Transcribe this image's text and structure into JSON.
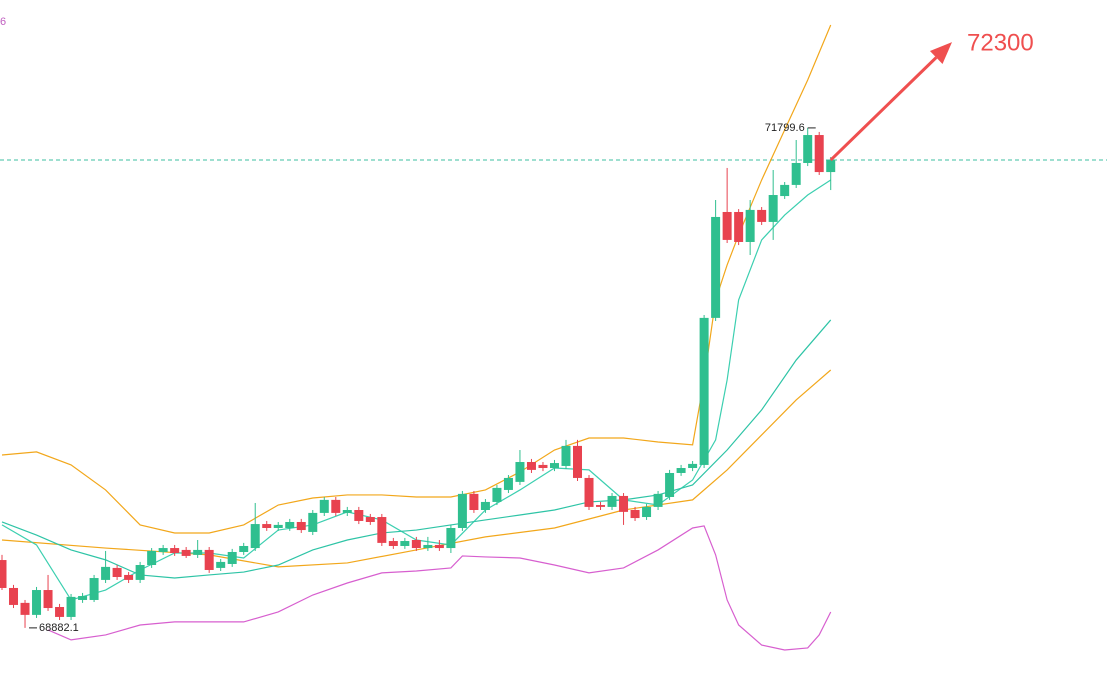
{
  "chart_data": {
    "type": "candlestick",
    "up_color": "#2fbf8f",
    "down_color": "#e8424f",
    "ylim": [
      68578,
      72546
    ],
    "corner_label": "6",
    "target": 72300,
    "open": [
      69278,
      69115,
      69028,
      68958,
      69103,
      69004,
      68946,
      69045,
      69045,
      69162,
      69232,
      69191,
      69162,
      69249,
      69325,
      69348,
      69337,
      69308,
      69337,
      69232,
      69255,
      69325,
      69348,
      69488,
      69465,
      69465,
      69500,
      69442,
      69553,
      69629,
      69553,
      69570,
      69529,
      69529,
      69389,
      69360,
      69395,
      69348,
      69366,
      69348,
      69465,
      69664,
      69570,
      69617,
      69687,
      69734,
      69850,
      69833,
      69815,
      69827,
      69944,
      69757,
      69599,
      69588,
      69652,
      69570,
      69529,
      69588,
      69646,
      69786,
      69815,
      69833,
      70691,
      71309,
      71309,
      71134,
      71321,
      71251,
      71402,
      71467,
      71595,
      71758,
      71542
    ],
    "high": [
      69308,
      69133,
      69045,
      69121,
      69191,
      69022,
      69080,
      69086,
      69191,
      69331,
      69249,
      69208,
      69267,
      69348,
      69366,
      69366,
      69354,
      69395,
      69354,
      69284,
      69343,
      69378,
      69611,
      69506,
      69500,
      69518,
      69518,
      69570,
      69646,
      69646,
      69588,
      69588,
      69547,
      69547,
      69407,
      69407,
      69413,
      69413,
      69395,
      69483,
      69681,
      69681,
      69634,
      69716,
      69774,
      69920,
      69868,
      69850,
      69862,
      69979,
      69979,
      69774,
      69617,
      69669,
      69669,
      69588,
      69605,
      69681,
      69804,
      69833,
      69856,
      70708,
      71379,
      71566,
      71326,
      71379,
      71338,
      71554,
      71484,
      71729,
      71799.6,
      71776,
      71630
    ],
    "low": [
      69103,
      68998,
      68882.1,
      68940,
      68981,
      68928,
      68928,
      69028,
      69033,
      69144,
      69162,
      69144,
      69144,
      69232,
      69308,
      69302,
      69290,
      69290,
      69203,
      69214,
      69238,
      69308,
      69331,
      69448,
      69448,
      69448,
      69436,
      69424,
      69535,
      69535,
      69535,
      69488,
      69483,
      69360,
      69343,
      69343,
      69331,
      69331,
      69331,
      69319,
      69448,
      69553,
      69553,
      69599,
      69669,
      69716,
      69786,
      69797,
      69797,
      69809,
      69739,
      69570,
      69570,
      69570,
      69483,
      69506,
      69512,
      69570,
      69629,
      69769,
      69797,
      69815,
      70673,
      71128,
      71116,
      71058,
      71233,
      71146,
      71385,
      71449,
      71577,
      71525,
      71437
    ],
    "close": [
      69115,
      69016,
      68958,
      69103,
      68998,
      68946,
      69063,
      69068,
      69173,
      69238,
      69179,
      69162,
      69249,
      69331,
      69348,
      69319,
      69302,
      69337,
      69220,
      69267,
      69325,
      69360,
      69488,
      69465,
      69483,
      69500,
      69453,
      69553,
      69629,
      69553,
      69570,
      69506,
      69500,
      69378,
      69360,
      69389,
      69348,
      69366,
      69348,
      69465,
      69664,
      69570,
      69617,
      69699,
      69757,
      69850,
      69804,
      69815,
      69844,
      69944,
      69757,
      69588,
      69588,
      69652,
      69559,
      69523,
      69588,
      69664,
      69786,
      69815,
      69839,
      70691,
      71280,
      71146,
      71134,
      71321,
      71251,
      71408,
      71467,
      71595,
      71758,
      71542,
      71612
    ],
    "lines": [
      {
        "color": "#f2a71b",
        "x": [
          0,
          3,
          6,
          9,
          12,
          15,
          18,
          21,
          24,
          27,
          30,
          33,
          36,
          39,
          42,
          45,
          48,
          51,
          54,
          57,
          60,
          61,
          62,
          63,
          64,
          66,
          68,
          70,
          72
        ],
        "values": [
          69891,
          69909,
          69833,
          69687,
          69483,
          69436,
          69436,
          69483,
          69599,
          69640,
          69658,
          69658,
          69646,
          69646,
          69687,
          69792,
          69920,
          69990,
          69990,
          69967,
          69950,
          70329,
          70796,
          71000,
          71175,
          71496,
          71788,
          72079,
          72400
        ]
      },
      {
        "color": "#f2a71b",
        "x": [
          0,
          9,
          18,
          24,
          30,
          36,
          42,
          48,
          54,
          60,
          63,
          66,
          69,
          72
        ],
        "values": [
          69395,
          69348,
          69308,
          69238,
          69261,
          69337,
          69413,
          69465,
          69570,
          69629,
          69804,
          70008,
          70212,
          70387
        ]
      },
      {
        "color": "#3ccfb0",
        "x": [
          0,
          3,
          6,
          9,
          12,
          15,
          18,
          21,
          24,
          27,
          30,
          33,
          36,
          39,
          42,
          45,
          48,
          51,
          54,
          57,
          60,
          62,
          63,
          64,
          66,
          68,
          70,
          72
        ],
        "values": [
          69483,
          69366,
          69045,
          69103,
          69220,
          69319,
          69319,
          69290,
          69453,
          69483,
          69559,
          69512,
          69395,
          69366,
          69570,
          69687,
          69815,
          69804,
          69629,
          69599,
          69745,
          69979,
          70329,
          70796,
          71146,
          71291,
          71408,
          71496
        ]
      },
      {
        "color": "#2ec4a6",
        "x": [
          0,
          3,
          6,
          9,
          12,
          15,
          18,
          21,
          24,
          27,
          30,
          33,
          36,
          39,
          42,
          45,
          48,
          51,
          54,
          57,
          60,
          63,
          66,
          69,
          72
        ],
        "values": [
          69500,
          69424,
          69337,
          69279,
          69191,
          69173,
          69191,
          69208,
          69249,
          69337,
          69395,
          69436,
          69453,
          69483,
          69512,
          69541,
          69570,
          69617,
          69629,
          69658,
          69716,
          69920,
          70154,
          70445,
          70679
        ]
      },
      {
        "color": "#d75fcf",
        "x": [
          4,
          6,
          9,
          12,
          15,
          18,
          21,
          24,
          27,
          30,
          33,
          36,
          39,
          40,
          42,
          45,
          48,
          51,
          54,
          57,
          60,
          61,
          62,
          63,
          64,
          66,
          68,
          70,
          71,
          72
        ],
        "values": [
          68870,
          68812,
          68841,
          68899,
          68917,
          68917,
          68917,
          68975,
          69074,
          69144,
          69203,
          69214,
          69232,
          69302,
          69296,
          69290,
          69249,
          69203,
          69232,
          69337,
          69465,
          69477,
          69308,
          69045,
          68899,
          68782,
          68753,
          68765,
          68841,
          68975
        ]
      }
    ]
  }
}
